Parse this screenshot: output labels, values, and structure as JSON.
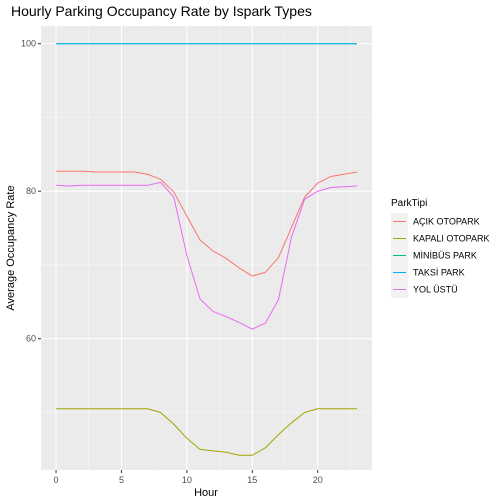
{
  "chart_data": {
    "type": "line",
    "title": "Hourly Parking Occupancy Rate by Ispark Types",
    "xlabel": "Hour",
    "ylabel": "Average Occupancy Rate",
    "xlim": [
      -1.15,
      24.15
    ],
    "ylim": [
      42.2,
      102.4
    ],
    "x_ticks": [
      0,
      5,
      10,
      15,
      20
    ],
    "x_tick_labels": [
      "0",
      "5",
      "10",
      "15",
      "20"
    ],
    "y_ticks": [
      60,
      80,
      100
    ],
    "y_tick_labels": [
      "60",
      "80",
      "100"
    ],
    "grid": true,
    "legend": {
      "title": "ParkTipi",
      "position": "right"
    },
    "x": [
      0,
      1,
      2,
      3,
      4,
      5,
      6,
      7,
      8,
      9,
      10,
      11,
      12,
      13,
      14,
      15,
      16,
      17,
      18,
      19,
      20,
      21,
      22,
      23
    ],
    "series": [
      {
        "name": "AÇIK OTOPARK",
        "color": "#F8766D",
        "values": [
          82.7,
          82.7,
          82.7,
          82.6,
          82.6,
          82.6,
          82.6,
          82.3,
          81.6,
          79.9,
          76.6,
          73.4,
          71.9,
          70.9,
          69.6,
          68.5,
          69.0,
          71.0,
          75.1,
          79.2,
          81.1,
          82.0,
          82.3,
          82.6
        ]
      },
      {
        "name": "KAPALI OTOPARK",
        "color": "#A3A500",
        "values": [
          50.5,
          50.5,
          50.5,
          50.5,
          50.5,
          50.5,
          50.5,
          50.5,
          50.0,
          48.4,
          46.5,
          45.0,
          44.8,
          44.6,
          44.2,
          44.2,
          45.2,
          47.0,
          48.6,
          50.0,
          50.5,
          50.5,
          50.5,
          50.5
        ]
      },
      {
        "name": "MİNİBÜS PARK",
        "color": "#00BF7D",
        "values": [
          100,
          100,
          100,
          100,
          100,
          100,
          100,
          100,
          100,
          100,
          100,
          100,
          100,
          100,
          100,
          100,
          100,
          100,
          100,
          100,
          100,
          100,
          100,
          100
        ]
      },
      {
        "name": "TAKSİ PARK",
        "color": "#00B0F6",
        "values": [
          100,
          100,
          100,
          100,
          100,
          100,
          100,
          100,
          100,
          100,
          100,
          100,
          100,
          100,
          100,
          100,
          100,
          100,
          100,
          100,
          100,
          100,
          100,
          100
        ]
      },
      {
        "name": "YOL ÜSTÜ",
        "color": "#E76BF3",
        "values": [
          80.8,
          80.7,
          80.8,
          80.8,
          80.8,
          80.8,
          80.8,
          80.8,
          81.2,
          79.2,
          71.3,
          65.4,
          63.7,
          63.0,
          62.2,
          61.3,
          62.1,
          65.3,
          73.8,
          78.9,
          80.0,
          80.5,
          80.6,
          80.7
        ]
      }
    ]
  }
}
